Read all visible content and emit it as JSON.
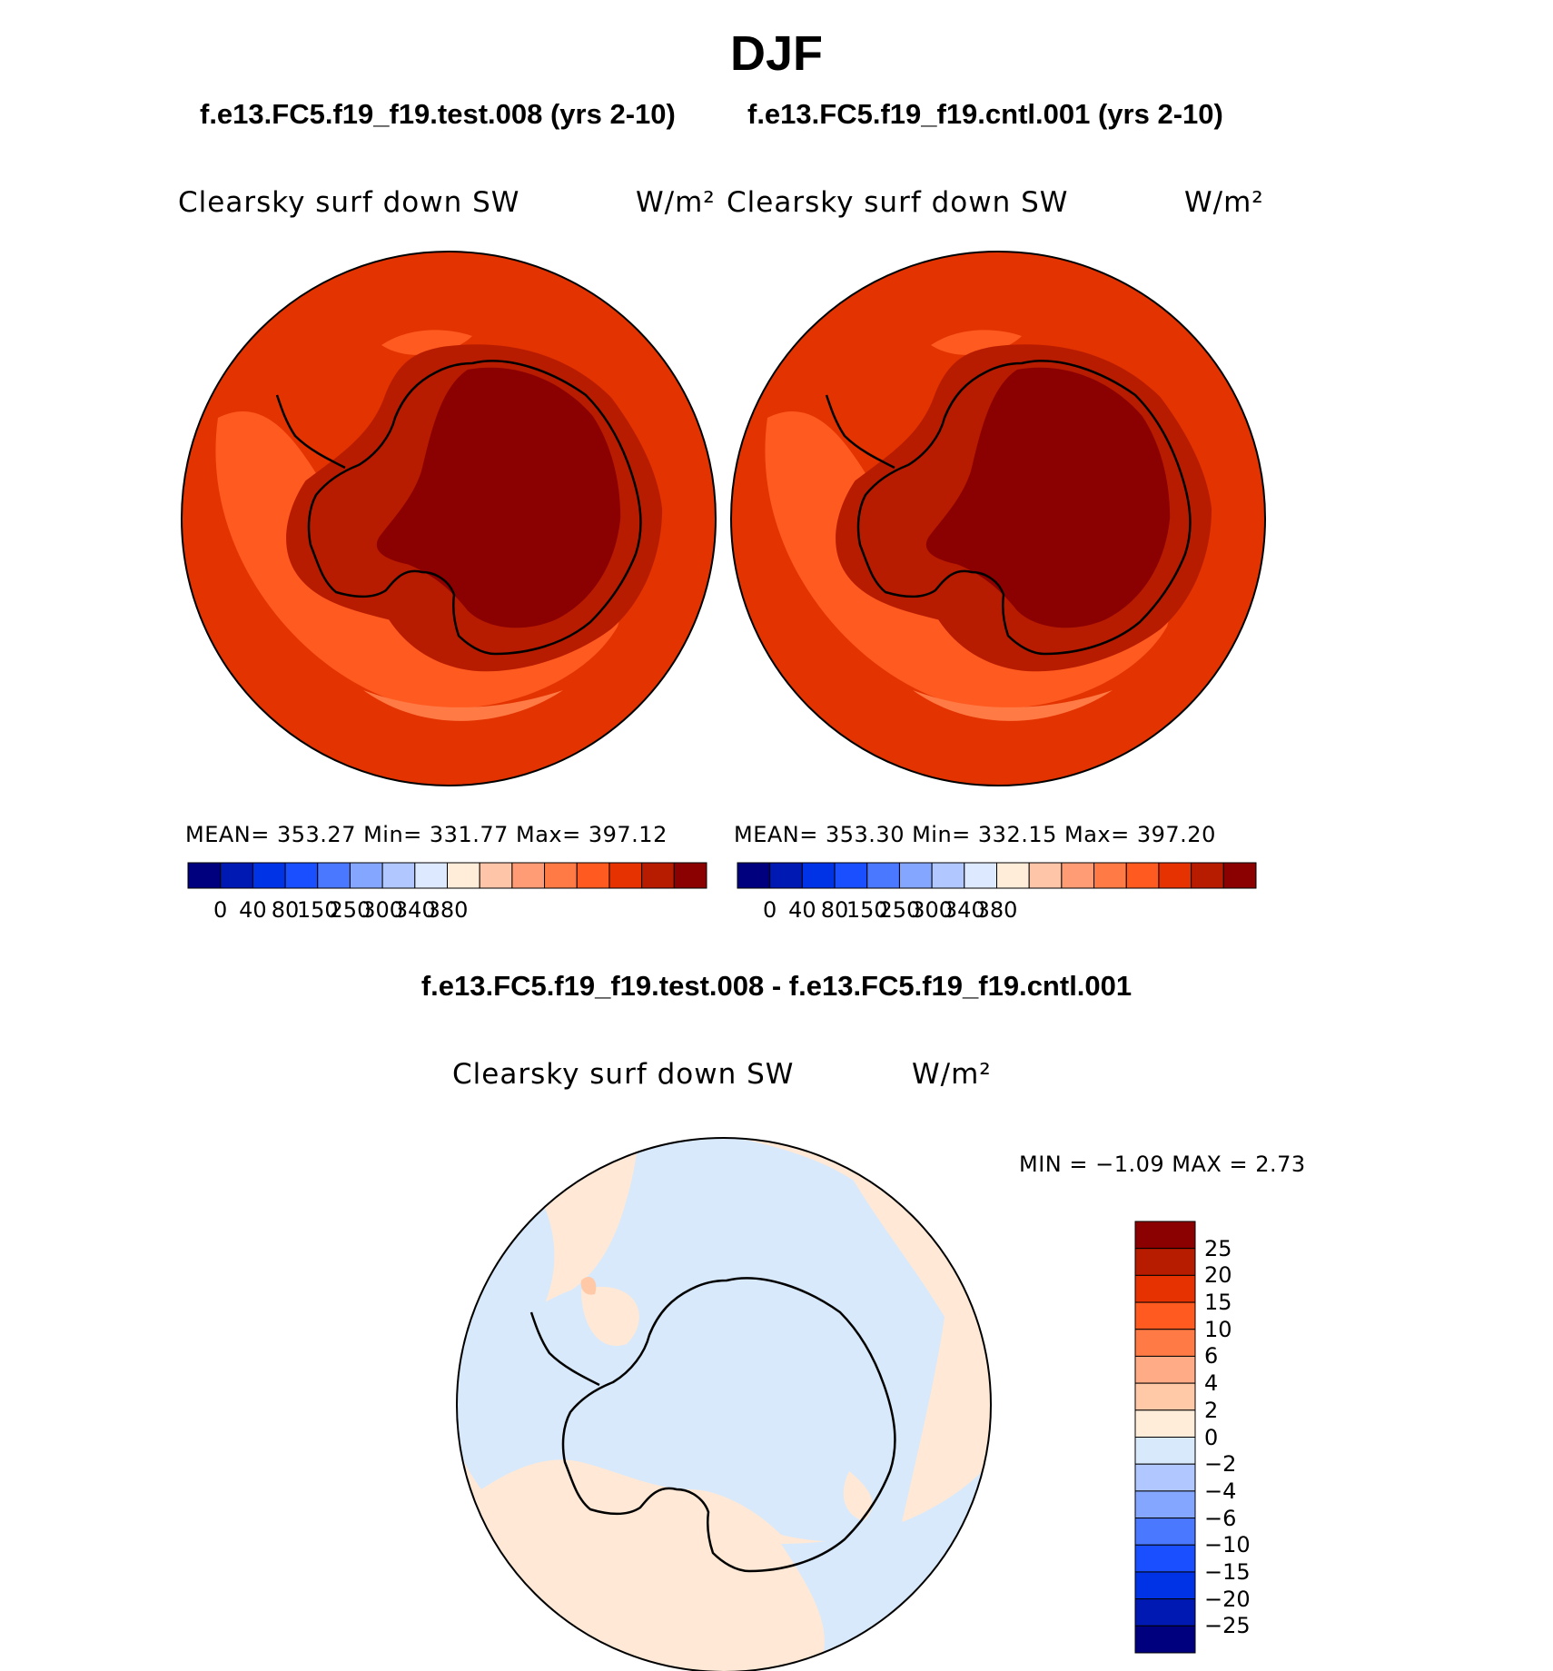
{
  "figure": {
    "title": "DJF",
    "diff_title": "f.e13.FC5.f19_f19.test.008 - f.e13.FC5.f19_f19.cntl.001"
  },
  "panels": [
    {
      "case_title": "f.e13.FC5.f19_f19.test.008 (yrs 2-10)",
      "variable": "Clearsky surf down SW",
      "units": "W/m²",
      "stats": {
        "mean": "353.27",
        "min": "331.77",
        "max": "397.12"
      },
      "stats_text": "MEAN=  353.27   Min=  331.77   Max=  397.12"
    },
    {
      "case_title": "f.e13.FC5.f19_f19.cntl.001 (yrs 2-10)",
      "variable": "Clearsky surf down SW",
      "units": "W/m²",
      "stats": {
        "mean": "353.30",
        "min": "332.15",
        "max": "397.20"
      },
      "stats_text": "MEAN=  353.30   Min=  332.15   Max=  397.20"
    }
  ],
  "difference": {
    "variable": "Clearsky surf down SW",
    "units": "W/m²",
    "min": "-1.09",
    "max": "2.73",
    "minmax_text": "MIN  =    −1.09  MAX  =      2.73"
  },
  "chart_data": [
    {
      "type": "heatmap",
      "projection": "south polar stereographic",
      "title": "f.e13.FC5.f19_f19.test.008 (yrs 2-10)",
      "variable": "Clearsky surf down SW",
      "units": "W/m²",
      "summary": {
        "mean": 353.27,
        "min": 331.77,
        "max": 397.12
      },
      "colorbar_labels": [
        "0",
        "40",
        "80",
        "150",
        "250",
        "300",
        "340",
        "380"
      ],
      "colorbar_colors": [
        "#00007f",
        "#0019b2",
        "#0032e6",
        "#1a4fff",
        "#4a78ff",
        "#85a6ff",
        "#b0c8ff",
        "#dde9ff",
        "#ffecd9",
        "#ffc5a8",
        "#ff9c75",
        "#ff7a45",
        "#ff5a1f",
        "#e63200",
        "#b81c00",
        "#8b0000"
      ]
    },
    {
      "type": "heatmap",
      "projection": "south polar stereographic",
      "title": "f.e13.FC5.f19_f19.cntl.001 (yrs 2-10)",
      "variable": "Clearsky surf down SW",
      "units": "W/m²",
      "summary": {
        "mean": 353.3,
        "min": 332.15,
        "max": 397.2
      },
      "colorbar_labels": [
        "0",
        "40",
        "80",
        "150",
        "250",
        "300",
        "340",
        "380"
      ],
      "colorbar_colors": [
        "#00007f",
        "#0019b2",
        "#0032e6",
        "#1a4fff",
        "#4a78ff",
        "#85a6ff",
        "#b0c8ff",
        "#dde9ff",
        "#ffecd9",
        "#ffc5a8",
        "#ff9c75",
        "#ff7a45",
        "#ff5a1f",
        "#e63200",
        "#b81c00",
        "#8b0000"
      ]
    },
    {
      "type": "heatmap",
      "projection": "south polar stereographic",
      "title": "f.e13.FC5.f19_f19.test.008 - f.e13.FC5.f19_f19.cntl.001",
      "variable": "Clearsky surf down SW",
      "units": "W/m²",
      "summary": {
        "min": -1.09,
        "max": 2.73
      },
      "colorbar_labels": [
        "25",
        "20",
        "15",
        "10",
        "6",
        "4",
        "2",
        "0",
        "−2",
        "−4",
        "−6",
        "−10",
        "−15",
        "−20",
        "−25"
      ],
      "colorbar_colors": [
        "#8b0000",
        "#b81c00",
        "#e63200",
        "#ff5a1f",
        "#ff7a45",
        "#ffab85",
        "#ffc9a8",
        "#ffecd9",
        "#d8e9fb",
        "#b0c8ff",
        "#85a6ff",
        "#4a78ff",
        "#1a4fff",
        "#0032e6",
        "#0019b2",
        "#00007f"
      ]
    }
  ],
  "colors": {
    "outer_ocean": "#e33300",
    "mid_band": "#ff5a1f",
    "light_band": "#ff7a45",
    "coast_band": "#b81c00",
    "interior": "#8b0000",
    "diff_positive": "#ffe9d6",
    "diff_negative": "#d8e9fb",
    "diff_hotspot": "#ffc9a8"
  }
}
